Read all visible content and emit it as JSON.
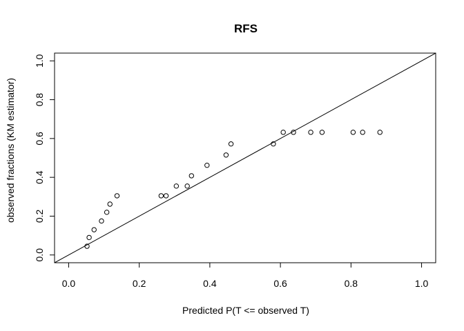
{
  "chart_data": {
    "type": "scatter",
    "title": "RFS",
    "xlabel": "Predicted P(T <= observed T)",
    "ylabel": "observed fractions (KM estimator)",
    "xlim": [
      -0.04,
      1.04
    ],
    "ylim": [
      -0.04,
      1.04
    ],
    "x_ticks": [
      "0.0",
      "0.2",
      "0.4",
      "0.6",
      "0.8",
      "1.0"
    ],
    "y_ticks": [
      "0.0",
      "0.2",
      "0.4",
      "0.6",
      "0.8",
      "1.0"
    ],
    "grid": false,
    "legend": "none",
    "reference_line": {
      "from": [
        0,
        0
      ],
      "to": [
        1,
        1
      ]
    },
    "points": [
      {
        "x": 0.052,
        "y": 0.045
      },
      {
        "x": 0.058,
        "y": 0.09
      },
      {
        "x": 0.072,
        "y": 0.13
      },
      {
        "x": 0.093,
        "y": 0.175
      },
      {
        "x": 0.108,
        "y": 0.22
      },
      {
        "x": 0.117,
        "y": 0.262
      },
      {
        "x": 0.137,
        "y": 0.305
      },
      {
        "x": 0.262,
        "y": 0.305
      },
      {
        "x": 0.276,
        "y": 0.305
      },
      {
        "x": 0.305,
        "y": 0.355
      },
      {
        "x": 0.336,
        "y": 0.355
      },
      {
        "x": 0.348,
        "y": 0.408
      },
      {
        "x": 0.392,
        "y": 0.462
      },
      {
        "x": 0.446,
        "y": 0.515
      },
      {
        "x": 0.46,
        "y": 0.572
      },
      {
        "x": 0.58,
        "y": 0.572
      },
      {
        "x": 0.608,
        "y": 0.632
      },
      {
        "x": 0.637,
        "y": 0.632
      },
      {
        "x": 0.686,
        "y": 0.632
      },
      {
        "x": 0.718,
        "y": 0.632
      },
      {
        "x": 0.806,
        "y": 0.632
      },
      {
        "x": 0.833,
        "y": 0.632
      },
      {
        "x": 0.882,
        "y": 0.632
      }
    ]
  }
}
